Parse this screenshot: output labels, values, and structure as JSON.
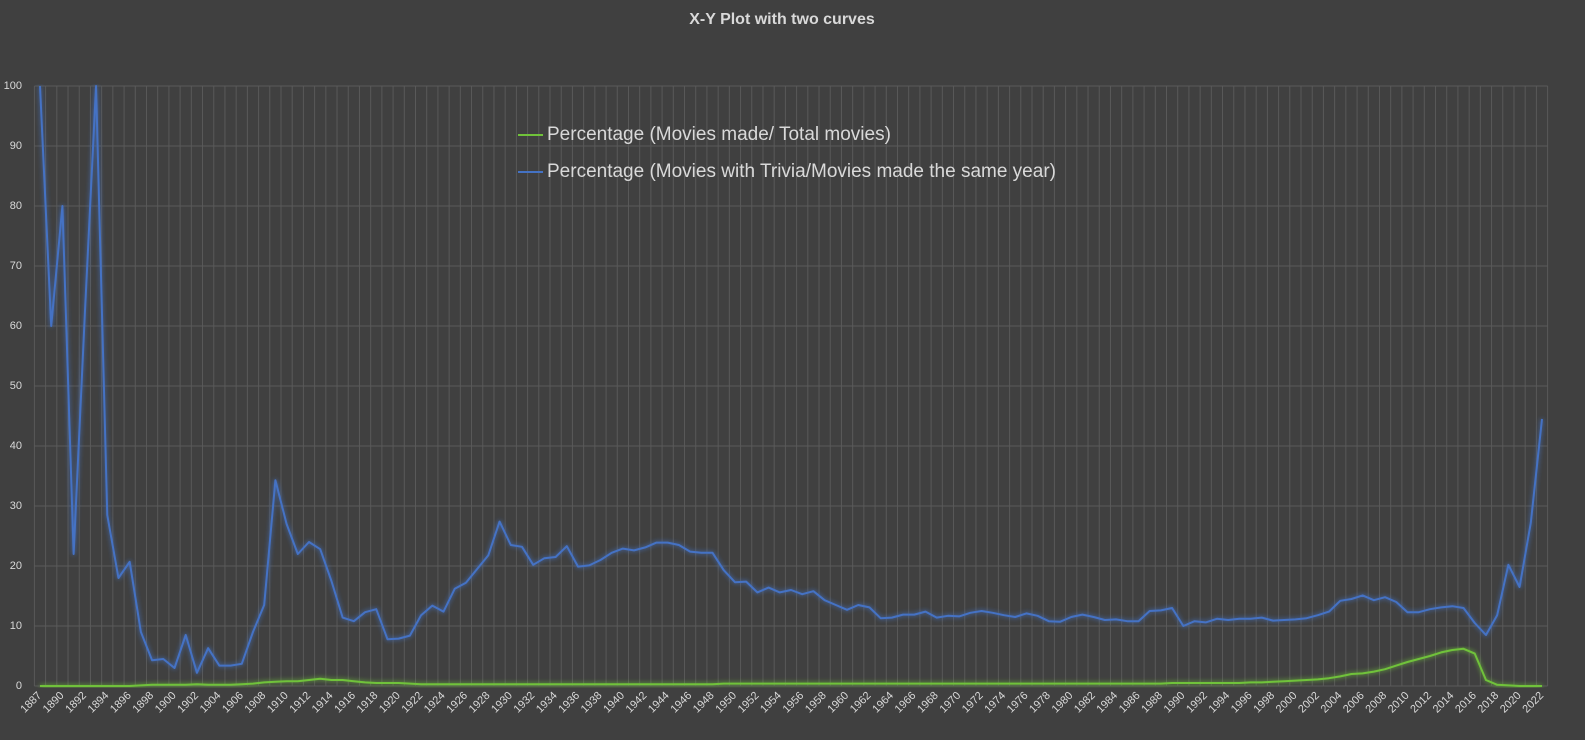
{
  "chart_data": {
    "type": "line",
    "title": "X-Y Plot with two curves",
    "categories": [
      1887,
      null,
      1890,
      null,
      1892,
      null,
      1894,
      null,
      1896,
      null,
      1898,
      null,
      1900,
      null,
      1902,
      null,
      1904,
      null,
      1906,
      null,
      1908,
      null,
      1910,
      null,
      1912,
      null,
      1914,
      null,
      1916,
      null,
      1918,
      null,
      1920,
      null,
      1922,
      null,
      1924,
      null,
      1926,
      null,
      1928,
      null,
      1930,
      null,
      1932,
      null,
      1934,
      null,
      1936,
      null,
      1938,
      null,
      1940,
      null,
      1942,
      null,
      1944,
      null,
      1946,
      null,
      1948,
      null,
      1950,
      null,
      1952,
      null,
      1954,
      null,
      1956,
      null,
      1958,
      null,
      1960,
      null,
      1962,
      null,
      1964,
      null,
      1966,
      null,
      1968,
      null,
      1970,
      null,
      1972,
      null,
      1974,
      null,
      1976,
      null,
      1978,
      null,
      1980,
      null,
      1982,
      null,
      1984,
      null,
      1986,
      null,
      1988,
      null,
      1990,
      null,
      1992,
      null,
      1994,
      null,
      1996,
      null,
      1998,
      null,
      2000,
      null,
      2002,
      null,
      2004,
      null,
      2006,
      null,
      2008,
      null,
      2010,
      null,
      2012,
      null,
      2014,
      null,
      2016,
      null,
      2018,
      null,
      2020,
      null,
      2022
    ],
    "series": [
      {
        "name": "Percentage (Movies made/ Total movies)",
        "color": "#70c23a",
        "values": [
          0,
          0,
          0,
          0,
          0,
          0,
          0,
          0,
          0,
          0.1,
          0.2,
          0.2,
          0.2,
          0.2,
          0.3,
          0.2,
          0.2,
          0.2,
          0.3,
          0.4,
          0.6,
          0.7,
          0.8,
          0.8,
          1.0,
          1.2,
          1.0,
          1.0,
          0.8,
          0.6,
          0.5,
          0.5,
          0.5,
          0.4,
          0.3,
          0.3,
          0.3,
          0.3,
          0.3,
          0.3,
          0.3,
          0.3,
          0.3,
          0.3,
          0.3,
          0.3,
          0.3,
          0.3,
          0.3,
          0.3,
          0.3,
          0.3,
          0.3,
          0.3,
          0.3,
          0.3,
          0.3,
          0.3,
          0.3,
          0.3,
          0.3,
          0.4,
          0.4,
          0.4,
          0.4,
          0.4,
          0.4,
          0.4,
          0.4,
          0.4,
          0.4,
          0.4,
          0.4,
          0.4,
          0.4,
          0.4,
          0.4,
          0.4,
          0.4,
          0.4,
          0.4,
          0.4,
          0.4,
          0.4,
          0.4,
          0.4,
          0.4,
          0.4,
          0.4,
          0.4,
          0.4,
          0.4,
          0.4,
          0.4,
          0.4,
          0.4,
          0.4,
          0.4,
          0.4,
          0.4,
          0.4,
          0.5,
          0.5,
          0.5,
          0.5,
          0.5,
          0.5,
          0.5,
          0.6,
          0.6,
          0.7,
          0.8,
          0.9,
          1.0,
          1.1,
          1.3,
          1.6,
          2.0,
          2.1,
          2.4,
          2.8,
          3.4,
          4.0,
          4.5,
          5.0,
          5.6,
          6.0,
          6.2,
          5.4,
          1.0,
          0.2,
          0.1,
          0,
          0,
          0
        ]
      },
      {
        "name": "Percentage (Movies with Trivia/Movies made the same year)",
        "color": "#4472c4",
        "values": [
          100,
          60,
          80,
          22,
          62,
          100,
          28.5,
          18,
          20.7,
          9,
          4.3,
          4.5,
          3,
          8.5,
          2.2,
          6.3,
          3.4,
          3.4,
          3.7,
          9,
          13.5,
          34.3,
          27,
          22,
          24,
          22.8,
          17.5,
          11.4,
          10.8,
          12.3,
          12.8,
          7.8,
          7.9,
          8.4,
          11.8,
          13.4,
          12.4,
          16.2,
          17.2,
          19.5,
          21.8,
          27.4,
          23.5,
          23.2,
          20.2,
          21.3,
          21.5,
          23.3,
          19.9,
          20.1,
          21,
          22.2,
          22.9,
          22.6,
          23.1,
          23.9,
          23.9,
          23.5,
          22.4,
          22.2,
          22.2,
          19.3,
          17.3,
          17.4,
          15.6,
          16.4,
          15.6,
          16,
          15.3,
          15.8,
          14.3,
          13.5,
          12.7,
          13.5,
          13.1,
          11.3,
          11.4,
          11.9,
          11.9,
          12.4,
          11.4,
          11.7,
          11.6,
          12.2,
          12.5,
          12.2,
          11.8,
          11.5,
          12.1,
          11.7,
          10.8,
          10.7,
          11.5,
          11.9,
          11.5,
          11.0,
          11.1,
          10.8,
          10.8,
          12.5,
          12.6,
          13,
          10,
          10.8,
          10.6,
          11.2,
          11,
          11.2,
          11.2,
          11.4,
          10.9,
          11,
          11.1,
          11.3,
          11.8,
          12.4,
          14.2,
          14.5,
          15.1,
          14.3,
          14.8,
          14,
          12.3,
          12.3,
          12.8,
          13.1,
          13.3,
          13,
          10.5,
          8.5,
          11.8,
          20.2,
          16.5,
          27.2,
          44.5
        ]
      }
    ],
    "ylim": [
      0,
      100
    ],
    "yticks": [
      0,
      10,
      20,
      30,
      40,
      50,
      60,
      70,
      80,
      90,
      100
    ],
    "grid": true,
    "legend": "top"
  }
}
